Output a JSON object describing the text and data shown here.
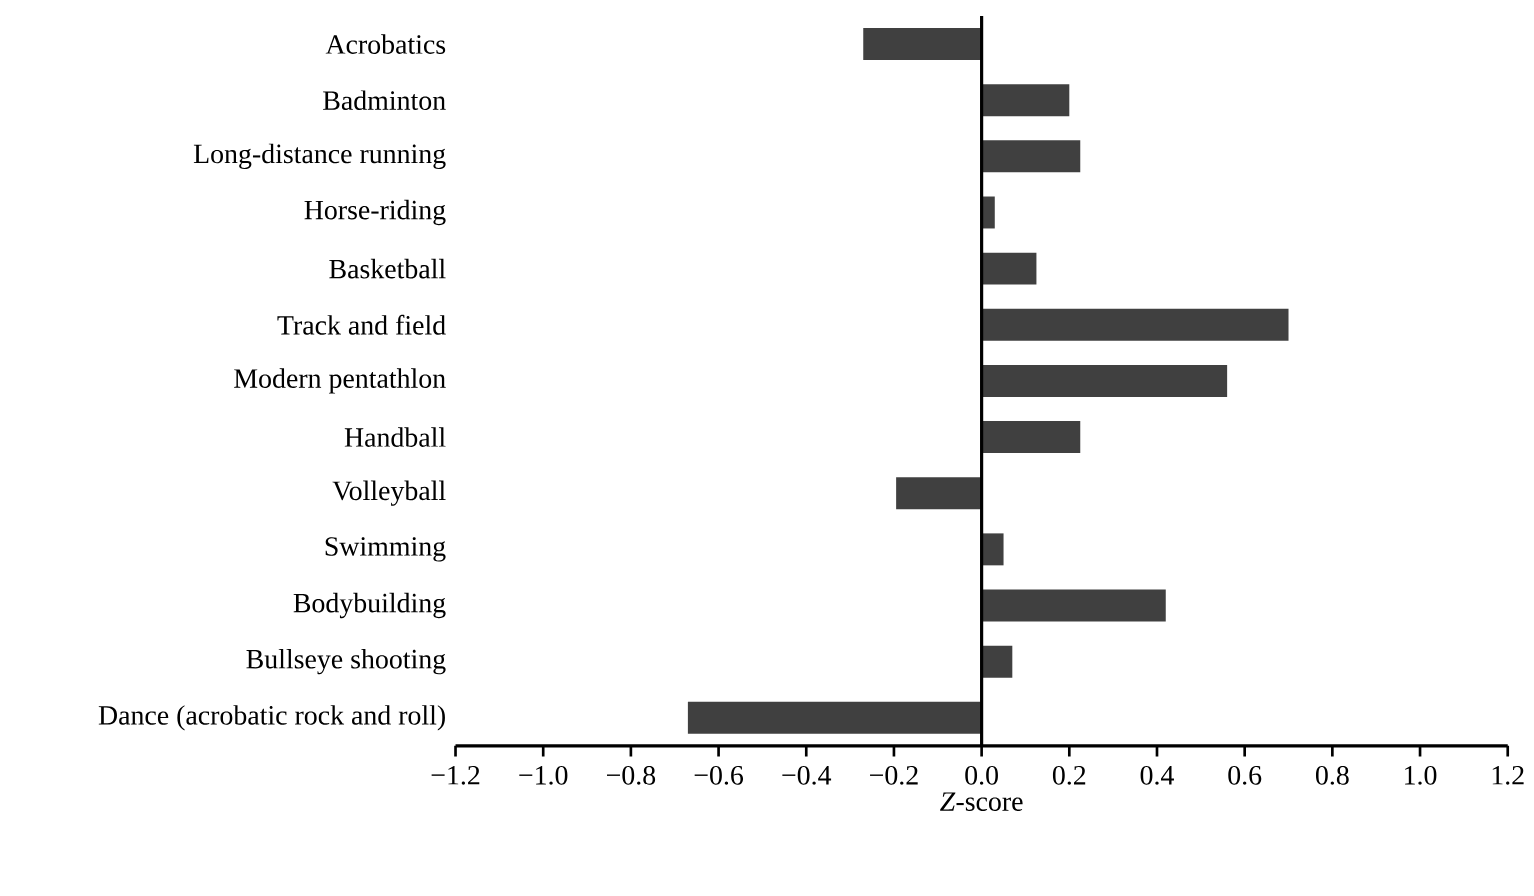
{
  "chart_data": {
    "type": "bar",
    "orientation": "horizontal",
    "xlabel": "*Z*-score",
    "categories": [
      "Acrobatics",
      "Badminton",
      "Long-distance running",
      "Horse-riding",
      "Basketball",
      "Track and field",
      "Modern pentathlon",
      "Handball",
      "Volleyball",
      "Swimming",
      "Bodybuilding",
      "Bullseye  shooting",
      "Dance (acrobatic rock and roll)"
    ],
    "values": [
      -0.27,
      0.2,
      0.225,
      0.03,
      0.125,
      0.7,
      0.56,
      0.225,
      -0.195,
      0.05,
      0.42,
      0.07,
      -0.67
    ],
    "color": "#404040",
    "xlim": [
      -1.2,
      1.2
    ],
    "xticks": [
      {
        "value": -1.2,
        "label": "−1.2"
      },
      {
        "value": -1.0,
        "label": "−1.0"
      },
      {
        "value": -0.8,
        "label": "−0.8"
      },
      {
        "value": -0.6,
        "label": "−0.6"
      },
      {
        "value": -0.4,
        "label": "−0.4"
      },
      {
        "value": -0.2,
        "label": "−0.2"
      },
      {
        "value": 0,
        "label": "0.0"
      },
      {
        "value": 0.2,
        "label": "0.2"
      },
      {
        "value": 0.4,
        "label": "0.4"
      },
      {
        "value": 0.6,
        "label": "0.6"
      },
      {
        "value": 0.8,
        "label": "0.8"
      },
      {
        "value": 1.0,
        "label": "1.0"
      },
      {
        "value": 1.2,
        "label": "1.2"
      }
    ]
  }
}
